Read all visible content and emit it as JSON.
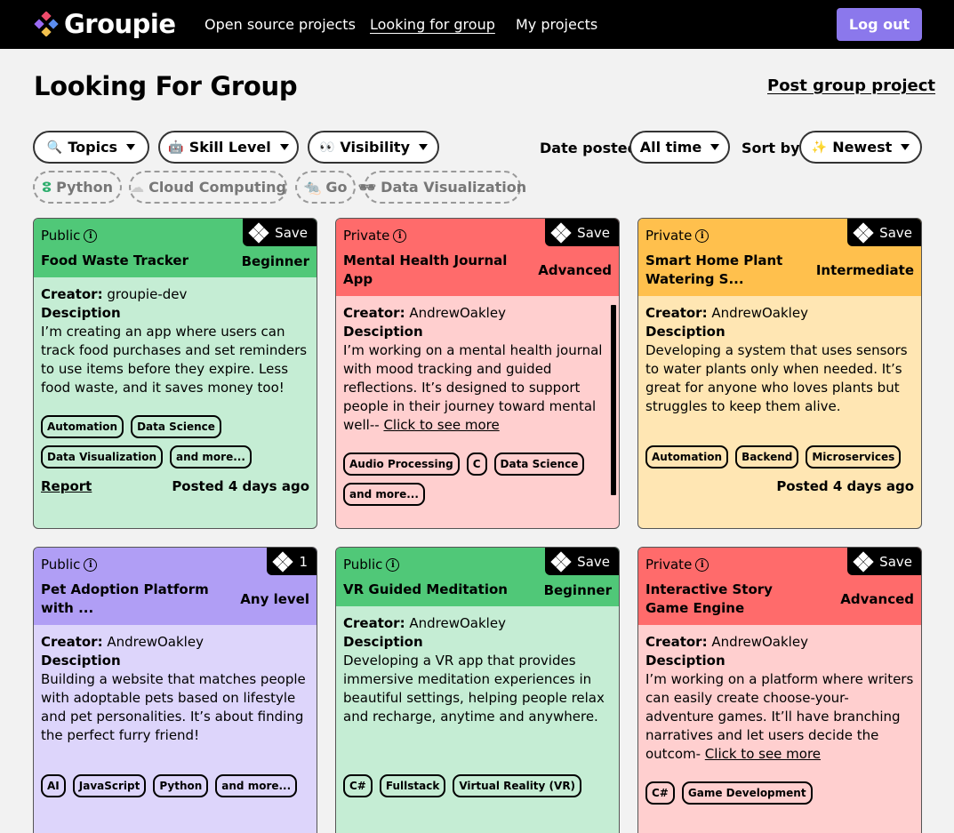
{
  "nav": {
    "brand": "Groupie",
    "links": [
      "Open source projects",
      "Looking for group",
      "My projects"
    ],
    "logout": "Log out"
  },
  "page": {
    "title": "Looking For Group",
    "post_link": "Post group project"
  },
  "filters": {
    "topics": "Topics",
    "skill": "Skill Level",
    "visibility": "Visibility",
    "date_label": "Date posted:",
    "date_value": "All time",
    "sort_label": "Sort by:",
    "sort_value": "Newest",
    "chips": [
      "Python",
      "Cloud Computing",
      "Go",
      "Data Visualization"
    ]
  },
  "common": {
    "creator_label": "Creator:",
    "desc_label": "Desciption",
    "save": "Save",
    "report": "Report",
    "click_more": "Click to see more"
  },
  "cards": [
    {
      "visibility": "Public",
      "name": "Food Waste Tracker",
      "level": "Beginner",
      "creator": "groupie-dev",
      "desc": "I’m creating an app where users can track food purchases and set reminders to use items before they expire. Less food waste, and it saves money too!",
      "tags": [
        "Automation",
        "Data Science",
        "Data Visualization",
        "and more..."
      ],
      "posted": "Posted 4 days ago",
      "save": "Save",
      "color": "#50c878"
    },
    {
      "visibility": "Private",
      "name": "Mental Health Journal App",
      "level": "Advanced",
      "creator": "AndrewOakley",
      "desc": "I’m working on a mental health journal with mood tracking and guided reflections. It’s designed to support people in their journey toward mental well--",
      "tags": [
        "Audio Processing",
        "C",
        "Data Science",
        "and more..."
      ],
      "save": "Save",
      "color": "#ff6b6b"
    },
    {
      "visibility": "Private",
      "name": "Smart Home Plant Watering S...",
      "level": "Intermediate",
      "creator": "AndrewOakley",
      "desc": "Developing a system that uses sensors to water plants only when needed. It’s great for anyone who loves plants but struggles to keep them alive.",
      "tags": [
        "Automation",
        "Backend",
        "Microservices"
      ],
      "posted": "Posted 4 days ago",
      "save": "Save",
      "color": "#ffc04d"
    },
    {
      "visibility": "Public",
      "name": "Pet Adoption Platform with ...",
      "level": "Any level",
      "creator": "AndrewOakley",
      "desc": "Building a website that matches people with adoptable pets based on lifestyle and pet personalities. It’s about finding the perfect furry friend!",
      "tags": [
        "AI",
        "JavaScript",
        "Python",
        "and more..."
      ],
      "save": "1",
      "color": "#b09ef5"
    },
    {
      "visibility": "Public",
      "name": "VR Guided Meditation",
      "level": "Beginner",
      "creator": "AndrewOakley",
      "desc": "Developing a VR app that provides immersive meditation experiences in beautiful settings, helping people relax and recharge, anytime and anywhere.",
      "tags": [
        "C#",
        "Fullstack",
        "Virtual Reality (VR)"
      ],
      "save": "Save",
      "color": "#50c878"
    },
    {
      "visibility": "Private",
      "name": "Interactive Story Game Engine",
      "level": "Advanced",
      "creator": "AndrewOakley",
      "desc": "I’m working on a platform where writers can easily create choose-your-adventure games. It’ll have branching narratives and let users decide the outcom-",
      "tags": [
        "C#",
        "Game Development"
      ],
      "save": "Save",
      "color": "#ff6b6b"
    }
  ]
}
